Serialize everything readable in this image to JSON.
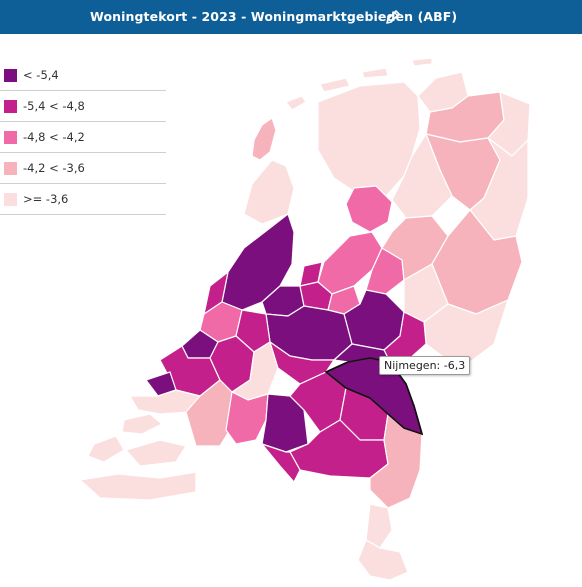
{
  "header": {
    "title": "Woningtekort - 2023 - Woningmarktgebieden (ABF)",
    "edit_icon": "pencil-icon"
  },
  "colors": {
    "header_bg": "#0e5f98",
    "class1": "#7c0f7e",
    "class2": "#c4208c",
    "class3": "#ef6aa7",
    "class4": "#f7b3bb",
    "class5": "#fbdfdf",
    "border": "#ffffff",
    "highlight_border": "#111111"
  },
  "legend": {
    "items": [
      {
        "label": "< -5,4",
        "color": "#7c0f7e"
      },
      {
        "label": "-5,4 < -4,8",
        "color": "#c4208c"
      },
      {
        "label": "-4,8 < -4,2",
        "color": "#ef6aa7"
      },
      {
        "label": "-4,2 < -3,6",
        "color": "#f7b3bb"
      },
      {
        "label": ">= -3,6",
        "color": "#fbdfdf"
      }
    ]
  },
  "tooltip": {
    "region": "Nijmegen",
    "value": -6.3,
    "text": "Nijmegen: -6,3"
  }
}
